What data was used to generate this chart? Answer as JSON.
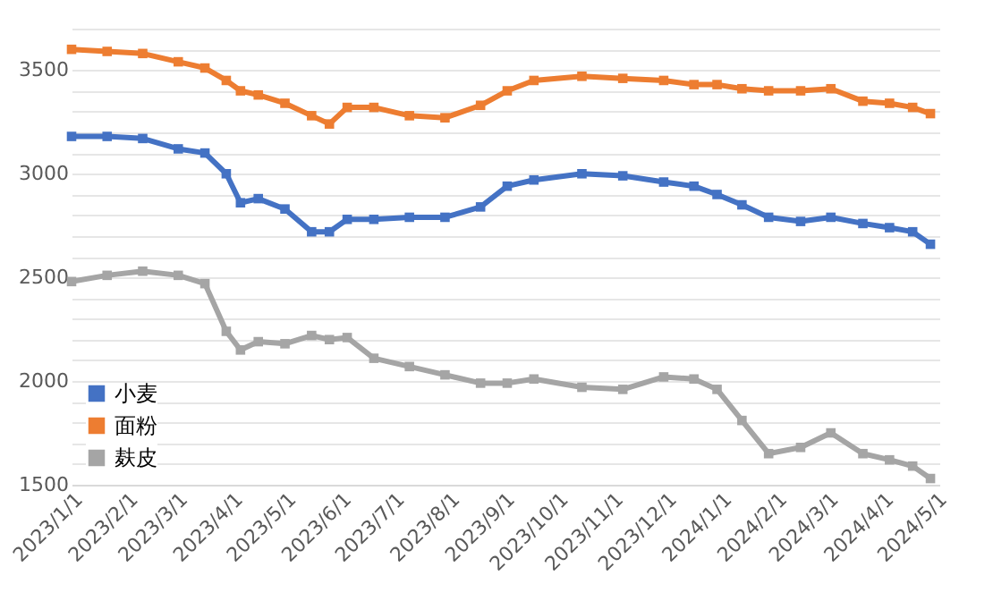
{
  "chart_data": {
    "type": "line",
    "x": [
      "2023-01-01",
      "2023-01-21",
      "2023-02-10",
      "2023-03-02",
      "2023-03-17",
      "2023-03-29",
      "2023-04-06",
      "2023-04-16",
      "2023-05-01",
      "2023-05-16",
      "2023-05-26",
      "2023-06-05",
      "2023-06-20",
      "2023-07-10",
      "2023-07-30",
      "2023-08-19",
      "2023-09-03",
      "2023-09-18",
      "2023-10-15",
      "2023-11-07",
      "2023-11-30",
      "2023-12-17",
      "2023-12-30",
      "2024-01-13",
      "2024-01-28",
      "2024-02-15",
      "2024-03-03",
      "2024-03-21",
      "2024-04-05",
      "2024-04-18",
      "2024-04-28"
    ],
    "series": [
      {
        "name": "小麦",
        "color": "#4472c4",
        "values": [
          3180,
          3180,
          3170,
          3120,
          3100,
          3000,
          2860,
          2880,
          2830,
          2720,
          2720,
          2780,
          2780,
          2790,
          2790,
          2840,
          2940,
          2970,
          3000,
          2990,
          2960,
          2940,
          2900,
          2850,
          2790,
          2770,
          2790,
          2760,
          2740,
          2720,
          2660
        ]
      },
      {
        "name": "面粉",
        "color": "#ed7d31",
        "values": [
          3600,
          3590,
          3580,
          3540,
          3510,
          3450,
          3400,
          3380,
          3340,
          3280,
          3240,
          3320,
          3320,
          3280,
          3270,
          3330,
          3400,
          3450,
          3470,
          3460,
          3450,
          3430,
          3430,
          3410,
          3400,
          3400,
          3410,
          3350,
          3340,
          3320,
          3290
        ]
      },
      {
        "name": "麸皮",
        "color": "#a5a5a5",
        "values": [
          2480,
          2510,
          2530,
          2510,
          2470,
          2240,
          2150,
          2190,
          2180,
          2220,
          2200,
          2210,
          2110,
          2070,
          2030,
          1990,
          1990,
          2010,
          1970,
          1960,
          2020,
          2010,
          1960,
          1810,
          1650,
          1680,
          1750,
          1650,
          1620,
          1590,
          1530
        ]
      }
    ],
    "xlim": [
      "2023-01-01",
      "2024-05-03"
    ],
    "xticks": [
      {
        "value": "2023-01-01",
        "label": "2023/1/1"
      },
      {
        "value": "2023-02-01",
        "label": "2023/2/1"
      },
      {
        "value": "2023-03-01",
        "label": "2023/3/1"
      },
      {
        "value": "2023-04-01",
        "label": "2023/4/1"
      },
      {
        "value": "2023-05-01",
        "label": "2023/5/1"
      },
      {
        "value": "2023-06-01",
        "label": "2023/6/1"
      },
      {
        "value": "2023-07-01",
        "label": "2023/7/1"
      },
      {
        "value": "2023-08-01",
        "label": "2023/8/1"
      },
      {
        "value": "2023-09-01",
        "label": "2023/9/1"
      },
      {
        "value": "2023-10-01",
        "label": "2023/10/1"
      },
      {
        "value": "2023-11-01",
        "label": "2023/11/1"
      },
      {
        "value": "2023-12-01",
        "label": "2023/12/1"
      },
      {
        "value": "2024-01-01",
        "label": "2024/1/1"
      },
      {
        "value": "2024-02-01",
        "label": "2024/2/1"
      },
      {
        "value": "2024-03-01",
        "label": "2024/3/1"
      },
      {
        "value": "2024-04-01",
        "label": "2024/4/1"
      },
      {
        "value": "2024-05-01",
        "label": "2024/5/1"
      }
    ],
    "ylim": [
      1500,
      3700
    ],
    "yticks": [
      1500,
      {
        "value": 1600,
        "label": null
      },
      {
        "value": 1700,
        "label": null
      },
      {
        "value": 1800,
        "label": null
      },
      {
        "value": 1900,
        "label": null
      },
      2000,
      {
        "value": 2100,
        "label": null
      },
      {
        "value": 2200,
        "label": null
      },
      {
        "value": 2300,
        "label": null
      },
      {
        "value": 2400,
        "label": null
      },
      2500,
      {
        "value": 2600,
        "label": null
      },
      {
        "value": 2700,
        "label": null
      },
      {
        "value": 2800,
        "label": null
      },
      {
        "value": 2900,
        "label": null
      },
      3000,
      {
        "value": 3100,
        "label": null
      },
      {
        "value": 3200,
        "label": null
      },
      {
        "value": 3300,
        "label": null
      },
      {
        "value": 3400,
        "label": null
      },
      3500,
      {
        "value": 3600,
        "label": null
      },
      {
        "value": 3700,
        "label": null
      }
    ],
    "grid": "y",
    "legend": "bottom left",
    "marker": "square",
    "line_style": "solid"
  }
}
